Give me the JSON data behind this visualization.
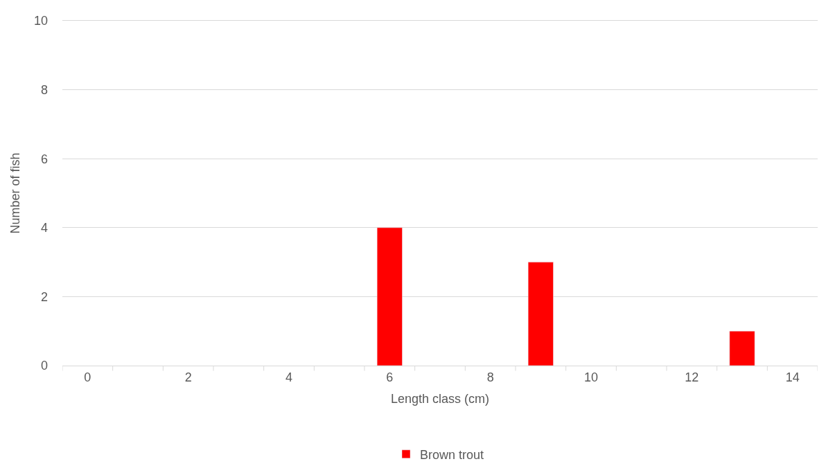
{
  "chart_data": {
    "type": "bar",
    "xlabel": "Length class (cm)",
    "ylabel": "Number of fish",
    "categories": [
      "0",
      null,
      "2",
      null,
      "4",
      null,
      "6",
      null,
      "8",
      null,
      "10",
      null,
      "12",
      null,
      "14"
    ],
    "series": [
      {
        "name": "Brown trout",
        "color": "#ff0000",
        "values": [
          null,
          null,
          null,
          null,
          null,
          null,
          4,
          null,
          null,
          3,
          null,
          null,
          null,
          1,
          null
        ]
      }
    ],
    "ylim": [
      0,
      10
    ],
    "yticks": [
      0,
      2,
      4,
      6,
      8,
      10
    ],
    "grid": "y",
    "legend": "bottom"
  }
}
